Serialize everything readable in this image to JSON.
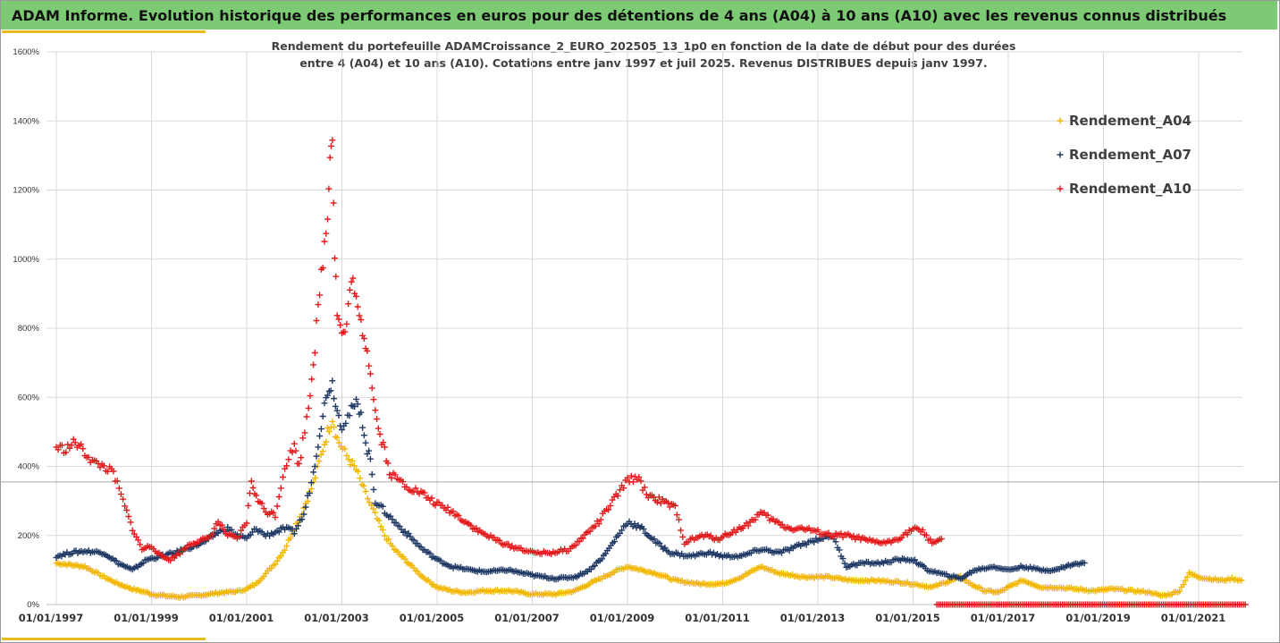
{
  "header": {
    "title": "ADAM Informe. Evolution historique des performances en euros pour des détentions de 4 ans (A04) à 10 ans (A10) avec les revenus connus distribués"
  },
  "colors": {
    "title_bar": "#7ccb74",
    "accent": "#e8bc1e",
    "grid": "#d9d9d9"
  },
  "chart_data": {
    "type": "scatter",
    "marker": "plus",
    "subtitle_lines": [
      "Rendement du portefeuille ADAMCroissance_2_EURO_202505_13_1p0  en fonction de la date de début pour des durées",
      "entre 4 (A04) et 10 ans (A10). Cotations  entre janv 1997 et juil 2025. Revenus DISTRIBUES depuis janv 1997."
    ],
    "y_ticks": [
      "0%",
      "200%",
      "400%",
      "600%",
      "800%",
      "1000%",
      "1200%",
      "1400%",
      "1600%"
    ],
    "ylim": [
      0,
      1600
    ],
    "x_ticks": [
      "01/01/1997",
      "01/01/1999",
      "01/01/2001",
      "01/01/2003",
      "01/01/2005",
      "01/01/2007",
      "01/01/2009",
      "01/01/2011",
      "01/01/2013",
      "01/01/2015",
      "01/01/2017",
      "01/01/2019",
      "01/01/2021"
    ],
    "xlim": [
      1997.0,
      2022.2
    ],
    "reference_line_y": 355,
    "legend_position": "right",
    "series": [
      {
        "name": "Rendement_A04",
        "color": "#f2b705",
        "points": [
          [
            1997.0,
            120
          ],
          [
            1997.3,
            115
          ],
          [
            1997.6,
            110
          ],
          [
            1998.0,
            80
          ],
          [
            1998.3,
            60
          ],
          [
            1998.6,
            45
          ],
          [
            1998.9,
            35
          ],
          [
            1999.0,
            30
          ],
          [
            1999.3,
            25
          ],
          [
            1999.6,
            22
          ],
          [
            1999.9,
            25
          ],
          [
            2000.2,
            30
          ],
          [
            2000.5,
            35
          ],
          [
            2000.8,
            38
          ],
          [
            2001.0,
            45
          ],
          [
            2001.2,
            60
          ],
          [
            2001.4,
            90
          ],
          [
            2001.6,
            120
          ],
          [
            2001.8,
            160
          ],
          [
            2002.0,
            220
          ],
          [
            2002.2,
            280
          ],
          [
            2002.4,
            350
          ],
          [
            2002.6,
            450
          ],
          [
            2002.7,
            500
          ],
          [
            2002.8,
            540
          ],
          [
            2002.9,
            480
          ],
          [
            2003.1,
            430
          ],
          [
            2003.3,
            390
          ],
          [
            2003.5,
            320
          ],
          [
            2003.7,
            260
          ],
          [
            2003.9,
            200
          ],
          [
            2004.1,
            160
          ],
          [
            2004.4,
            120
          ],
          [
            2004.7,
            80
          ],
          [
            2005.0,
            50
          ],
          [
            2005.3,
            40
          ],
          [
            2005.6,
            35
          ],
          [
            2006.0,
            40
          ],
          [
            2006.5,
            40
          ],
          [
            2007.0,
            30
          ],
          [
            2007.5,
            30
          ],
          [
            2007.9,
            40
          ],
          [
            2008.2,
            60
          ],
          [
            2008.5,
            80
          ],
          [
            2008.8,
            100
          ],
          [
            2009.0,
            110
          ],
          [
            2009.3,
            100
          ],
          [
            2009.6,
            90
          ],
          [
            2010.0,
            70
          ],
          [
            2010.5,
            60
          ],
          [
            2011.0,
            60
          ],
          [
            2011.4,
            80
          ],
          [
            2011.8,
            110
          ],
          [
            2012.2,
            90
          ],
          [
            2012.7,
            80
          ],
          [
            2013.2,
            80
          ],
          [
            2013.7,
            70
          ],
          [
            2014.2,
            70
          ],
          [
            2014.7,
            65
          ],
          [
            2015.0,
            60
          ],
          [
            2015.4,
            50
          ],
          [
            2015.8,
            70
          ],
          [
            2016.0,
            80
          ],
          [
            2016.2,
            60
          ],
          [
            2016.5,
            40
          ],
          [
            2016.8,
            35
          ],
          [
            2017.0,
            50
          ],
          [
            2017.3,
            70
          ],
          [
            2017.7,
            50
          ],
          [
            2018.0,
            50
          ],
          [
            2018.4,
            45
          ],
          [
            2018.8,
            40
          ],
          [
            2019.2,
            45
          ],
          [
            2019.6,
            40
          ],
          [
            2020.0,
            35
          ],
          [
            2020.2,
            25
          ],
          [
            2020.4,
            30
          ],
          [
            2020.6,
            40
          ],
          [
            2020.8,
            90
          ],
          [
            2021.0,
            80
          ],
          [
            2021.2,
            75
          ],
          [
            2021.5,
            70
          ],
          [
            2021.7,
            75
          ],
          [
            2021.9,
            70
          ]
        ]
      },
      {
        "name": "Rendement_A07",
        "color": "#1f3864",
        "points": [
          [
            1997.0,
            140
          ],
          [
            1997.3,
            150
          ],
          [
            1997.6,
            155
          ],
          [
            1998.0,
            150
          ],
          [
            1998.3,
            120
          ],
          [
            1998.6,
            100
          ],
          [
            1998.9,
            130
          ],
          [
            1999.2,
            140
          ],
          [
            1999.5,
            150
          ],
          [
            1999.8,
            165
          ],
          [
            2000.1,
            180
          ],
          [
            2000.4,
            210
          ],
          [
            2000.6,
            220
          ],
          [
            2000.8,
            200
          ],
          [
            2001.0,
            190
          ],
          [
            2001.2,
            220
          ],
          [
            2001.4,
            200
          ],
          [
            2001.6,
            210
          ],
          [
            2001.8,
            220
          ],
          [
            2002.0,
            210
          ],
          [
            2002.2,
            260
          ],
          [
            2002.4,
            380
          ],
          [
            2002.5,
            470
          ],
          [
            2002.6,
            550
          ],
          [
            2002.7,
            620
          ],
          [
            2002.8,
            640
          ],
          [
            2002.9,
            560
          ],
          [
            2003.0,
            520
          ],
          [
            2003.2,
            560
          ],
          [
            2003.3,
            580
          ],
          [
            2003.4,
            560
          ],
          [
            2003.5,
            460
          ],
          [
            2003.6,
            420
          ],
          [
            2003.7,
            300
          ],
          [
            2003.9,
            270
          ],
          [
            2004.1,
            240
          ],
          [
            2004.4,
            200
          ],
          [
            2004.7,
            160
          ],
          [
            2005.0,
            130
          ],
          [
            2005.3,
            110
          ],
          [
            2005.7,
            100
          ],
          [
            2006.0,
            95
          ],
          [
            2006.5,
            100
          ],
          [
            2007.0,
            85
          ],
          [
            2007.5,
            75
          ],
          [
            2007.9,
            80
          ],
          [
            2008.2,
            100
          ],
          [
            2008.5,
            140
          ],
          [
            2008.8,
            200
          ],
          [
            2009.0,
            240
          ],
          [
            2009.3,
            220
          ],
          [
            2009.6,
            180
          ],
          [
            2009.9,
            150
          ],
          [
            2010.3,
            140
          ],
          [
            2010.7,
            150
          ],
          [
            2011.0,
            140
          ],
          [
            2011.4,
            140
          ],
          [
            2011.8,
            160
          ],
          [
            2012.2,
            150
          ],
          [
            2012.6,
            170
          ],
          [
            2013.0,
            190
          ],
          [
            2013.3,
            200
          ],
          [
            2013.6,
            110
          ],
          [
            2013.9,
            120
          ],
          [
            2014.3,
            120
          ],
          [
            2014.7,
            130
          ],
          [
            2015.0,
            130
          ],
          [
            2015.3,
            100
          ],
          [
            2015.7,
            85
          ],
          [
            2016.0,
            75
          ],
          [
            2016.3,
            100
          ],
          [
            2016.7,
            110
          ],
          [
            2017.0,
            100
          ],
          [
            2017.3,
            110
          ],
          [
            2017.7,
            100
          ],
          [
            2018.0,
            100
          ],
          [
            2018.3,
            115
          ],
          [
            2018.6,
            120
          ]
        ]
      },
      {
        "name": "Rendement_A10",
        "color": "#e31a1c",
        "points": [
          [
            1997.0,
            455
          ],
          [
            1997.2,
            450
          ],
          [
            1997.4,
            470
          ],
          [
            1997.6,
            440
          ],
          [
            1997.8,
            410
          ],
          [
            1998.0,
            400
          ],
          [
            1998.2,
            380
          ],
          [
            1998.4,
            300
          ],
          [
            1998.6,
            220
          ],
          [
            1998.8,
            160
          ],
          [
            1999.0,
            170
          ],
          [
            1999.2,
            140
          ],
          [
            1999.4,
            130
          ],
          [
            1999.6,
            150
          ],
          [
            1999.8,
            175
          ],
          [
            2000.0,
            185
          ],
          [
            2000.2,
            190
          ],
          [
            2000.4,
            240
          ],
          [
            2000.6,
            200
          ],
          [
            2000.8,
            190
          ],
          [
            2001.0,
            240
          ],
          [
            2001.1,
            360
          ],
          [
            2001.2,
            310
          ],
          [
            2001.4,
            270
          ],
          [
            2001.6,
            260
          ],
          [
            2001.8,
            400
          ],
          [
            2002.0,
            460
          ],
          [
            2002.1,
            400
          ],
          [
            2002.3,
            580
          ],
          [
            2002.4,
            700
          ],
          [
            2002.5,
            850
          ],
          [
            2002.6,
            1000
          ],
          [
            2002.7,
            1120
          ],
          [
            2002.75,
            1330
          ],
          [
            2002.8,
            1350
          ],
          [
            2002.85,
            1020
          ],
          [
            2002.9,
            850
          ],
          [
            2003.0,
            780
          ],
          [
            2003.1,
            800
          ],
          [
            2003.2,
            960
          ],
          [
            2003.3,
            870
          ],
          [
            2003.4,
            810
          ],
          [
            2003.5,
            760
          ],
          [
            2003.6,
            680
          ],
          [
            2003.7,
            560
          ],
          [
            2003.8,
            490
          ],
          [
            2003.9,
            450
          ],
          [
            2004.0,
            380
          ],
          [
            2004.2,
            360
          ],
          [
            2004.4,
            340
          ],
          [
            2004.7,
            320
          ],
          [
            2005.0,
            290
          ],
          [
            2005.3,
            270
          ],
          [
            2005.6,
            240
          ],
          [
            2005.9,
            210
          ],
          [
            2006.2,
            190
          ],
          [
            2006.5,
            170
          ],
          [
            2006.8,
            160
          ],
          [
            2007.0,
            150
          ],
          [
            2007.4,
            150
          ],
          [
            2007.8,
            160
          ],
          [
            2008.1,
            200
          ],
          [
            2008.4,
            240
          ],
          [
            2008.6,
            280
          ],
          [
            2008.8,
            320
          ],
          [
            2009.0,
            360
          ],
          [
            2009.2,
            370
          ],
          [
            2009.4,
            320
          ],
          [
            2009.7,
            300
          ],
          [
            2010.0,
            280
          ],
          [
            2010.2,
            180
          ],
          [
            2010.4,
            190
          ],
          [
            2010.6,
            200
          ],
          [
            2010.9,
            190
          ],
          [
            2011.2,
            210
          ],
          [
            2011.5,
            230
          ],
          [
            2011.8,
            265
          ],
          [
            2012.1,
            240
          ],
          [
            2012.4,
            220
          ],
          [
            2012.7,
            220
          ],
          [
            2013.0,
            210
          ],
          [
            2013.3,
            200
          ],
          [
            2013.6,
            200
          ],
          [
            2013.9,
            190
          ],
          [
            2014.2,
            180
          ],
          [
            2014.5,
            180
          ],
          [
            2014.8,
            200
          ],
          [
            2015.0,
            220
          ],
          [
            2015.2,
            210
          ],
          [
            2015.4,
            180
          ],
          [
            2015.6,
            190
          ]
        ]
      }
    ],
    "a10_zero_segment": {
      "from": 2015.5,
      "to": 2022.0,
      "value": 0
    }
  }
}
